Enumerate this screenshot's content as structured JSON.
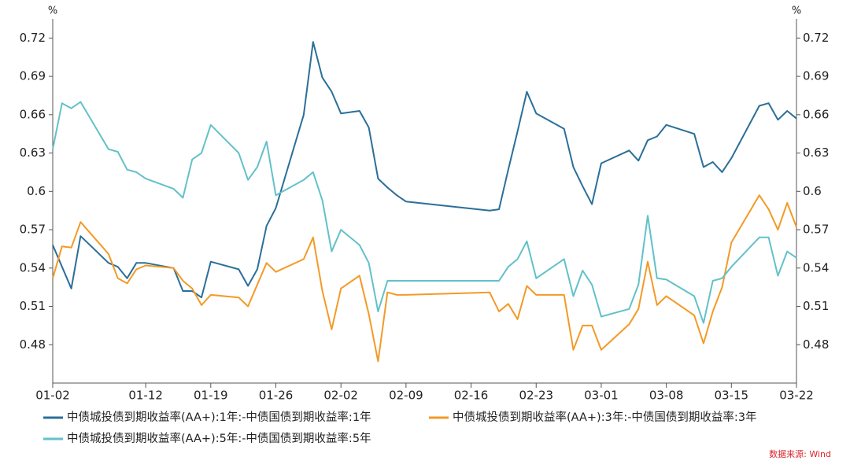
{
  "chart_data": {
    "type": "line",
    "ylabel": "%",
    "y2label": "%",
    "x": [
      "01-02",
      "01-03",
      "01-04",
      "01-05",
      "01-08",
      "01-09",
      "01-10",
      "01-11",
      "01-12",
      "01-15",
      "01-16",
      "01-17",
      "01-18",
      "01-19",
      "01-22",
      "01-23",
      "01-24",
      "01-25",
      "01-26",
      "01-29",
      "01-30",
      "01-31",
      "02-01",
      "02-02",
      "02-04",
      "02-05",
      "02-06",
      "02-07",
      "02-08",
      "02-09",
      "02-18",
      "02-19",
      "02-20",
      "02-21",
      "02-22",
      "02-23",
      "02-26",
      "02-27",
      "02-28",
      "02-29",
      "03-01",
      "03-04",
      "03-05",
      "03-06",
      "03-07",
      "03-08",
      "03-11",
      "03-12",
      "03-13",
      "03-14",
      "03-15",
      "03-18",
      "03-19",
      "03-20",
      "03-21",
      "03-22"
    ],
    "xlim": [
      "01-02",
      "03-22"
    ],
    "xticks": [
      "01-02",
      "01-12",
      "01-19",
      "01-26",
      "02-02",
      "02-09",
      "02-16",
      "02-23",
      "03-01",
      "03-08",
      "03-15",
      "03-22"
    ],
    "ylim": [
      0.45,
      0.735
    ],
    "yticks": [
      0.48,
      0.51,
      0.54,
      0.57,
      0.6,
      0.63,
      0.66,
      0.69,
      0.72
    ],
    "y2lim": [
      0.45,
      0.735
    ],
    "y2ticks": [
      0.48,
      0.51,
      0.54,
      0.57,
      0.6,
      0.63,
      0.66,
      0.69,
      0.72
    ],
    "grid": false,
    "series": [
      {
        "name": "中债城投债到期收益率(AA+):1年:-中债国债到期收益率:1年",
        "color": "#2b6f99",
        "values": [
          0.558,
          0.541,
          0.524,
          0.565,
          0.544,
          0.541,
          0.532,
          0.544,
          0.544,
          0.54,
          0.522,
          0.522,
          0.517,
          0.545,
          0.539,
          0.526,
          0.539,
          0.573,
          0.587,
          0.66,
          0.717,
          0.689,
          0.678,
          0.661,
          0.663,
          0.65,
          0.61,
          0.603,
          0.597,
          0.592,
          0.585,
          0.586,
          0.617,
          0.647,
          0.678,
          0.661,
          0.649,
          0.619,
          0.604,
          0.59,
          0.622,
          0.632,
          0.624,
          0.64,
          0.643,
          0.652,
          0.645,
          0.619,
          0.623,
          0.615,
          0.626,
          0.667,
          0.669,
          0.656,
          0.663,
          0.657
        ]
      },
      {
        "name": "中债城投债到期收益率(AA+):3年:-中债国债到期收益率:3年",
        "color": "#f39a26",
        "values": [
          0.532,
          0.557,
          0.556,
          0.576,
          0.551,
          0.532,
          0.528,
          0.539,
          0.542,
          0.54,
          0.53,
          0.524,
          0.511,
          0.519,
          0.517,
          0.51,
          0.527,
          0.544,
          0.537,
          0.547,
          0.564,
          0.522,
          0.492,
          0.524,
          0.534,
          0.504,
          0.467,
          0.521,
          0.519,
          0.519,
          0.521,
          0.506,
          0.512,
          0.5,
          0.526,
          0.519,
          0.519,
          0.476,
          0.495,
          0.495,
          0.476,
          0.496,
          0.508,
          0.545,
          0.511,
          0.518,
          0.503,
          0.481,
          0.506,
          0.525,
          0.56,
          0.597,
          0.586,
          0.57,
          0.591,
          0.572
        ]
      },
      {
        "name": "中债城投债到期收益率(AA+):5年:-中债国债到期收益率:5年",
        "color": "#62c1c9",
        "values": [
          0.633,
          0.669,
          0.665,
          0.67,
          0.633,
          0.631,
          0.617,
          0.615,
          0.61,
          0.602,
          0.595,
          0.625,
          0.63,
          0.652,
          0.63,
          0.609,
          0.619,
          0.639,
          0.597,
          0.609,
          0.615,
          0.593,
          0.553,
          0.57,
          0.558,
          0.544,
          0.506,
          0.53,
          0.53,
          0.53,
          0.53,
          0.53,
          0.541,
          0.547,
          0.561,
          0.532,
          0.547,
          0.518,
          0.538,
          0.527,
          0.502,
          0.508,
          0.527,
          0.581,
          0.532,
          0.531,
          0.518,
          0.497,
          0.53,
          0.532,
          0.541,
          0.564,
          0.564,
          0.534,
          0.553,
          0.548
        ]
      }
    ],
    "source": "数据来源: Wind"
  }
}
